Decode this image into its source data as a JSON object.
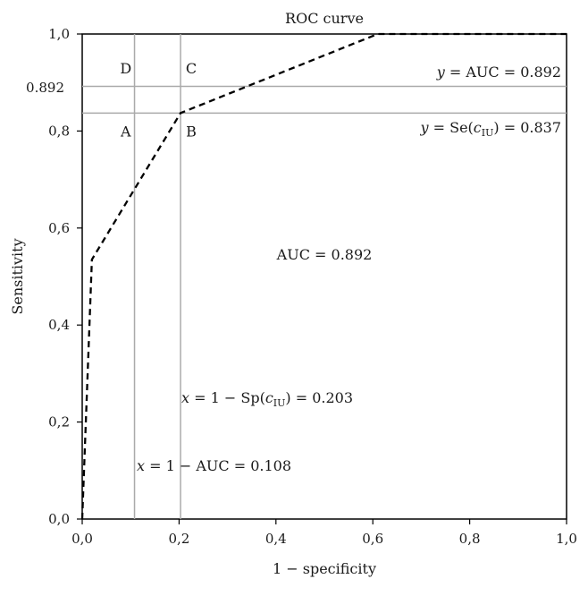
{
  "chart_data": {
    "type": "line",
    "title": "ROC curve",
    "xlabel": "1 − specificity",
    "ylabel": "Sensitivity",
    "xlim": [
      0,
      1
    ],
    "ylim": [
      0,
      1
    ],
    "x_ticks": [
      "0,0",
      "0,2",
      "0,4",
      "0,6",
      "0,8",
      "1,0"
    ],
    "y_ticks": [
      "0,0",
      "0,2",
      "0,4",
      "0,6",
      "0,8",
      "1,0"
    ],
    "extra_y_tick": "0.892",
    "grid": false,
    "series": [
      {
        "line_style": "dashed",
        "color": "#000000",
        "x": [
          0,
          0.02,
          0.203,
          0.61,
          1.0
        ],
        "y": [
          0,
          0.535,
          0.837,
          1.0,
          1.0
        ]
      }
    ],
    "reference_lines": [
      {
        "orientation": "vertical",
        "value": 0.108,
        "label_parts": [
          "x",
          " = 1 − AUC = 0.108"
        ],
        "color": "#aaaaaa"
      },
      {
        "orientation": "vertical",
        "value": 0.203,
        "label_parts": [
          "x",
          " = 1 − Sp(",
          "c",
          "IU",
          ") = 0.203"
        ],
        "color": "#aaaaaa"
      },
      {
        "orientation": "horizontal",
        "value": 0.892,
        "label_parts": [
          "y",
          " = AUC = 0.892"
        ],
        "color": "#aaaaaa"
      },
      {
        "orientation": "horizontal",
        "value": 0.837,
        "label_parts": [
          "y",
          " = Se(",
          "c",
          "IU",
          ") = 0.837"
        ],
        "color": "#aaaaaa"
      }
    ],
    "corner_labels": [
      {
        "text": "D",
        "x": 0.09,
        "y": 0.93
      },
      {
        "text": "C",
        "x": 0.225,
        "y": 0.93
      },
      {
        "text": "A",
        "x": 0.09,
        "y": 0.8
      },
      {
        "text": "B",
        "x": 0.225,
        "y": 0.8
      }
    ],
    "annotations": [
      {
        "text": "AUC = 0.892",
        "x": 0.5,
        "y": 0.535
      }
    ]
  }
}
